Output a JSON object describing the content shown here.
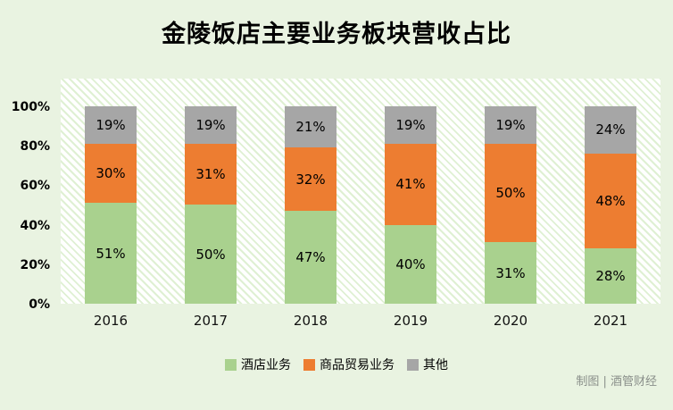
{
  "title": "金陵饭店主要业务板块营收占比",
  "credit": "制图 | 酒管财经",
  "colors": {
    "background": "#e9f3e1",
    "hotel": "#a9d18e",
    "trade": "#ed7d31",
    "other": "#a6a6a6"
  },
  "chart_data": {
    "type": "bar",
    "stacked": true,
    "title": "金陵饭店主要业务板块营收占比",
    "categories": [
      "2016",
      "2017",
      "2018",
      "2019",
      "2020",
      "2021"
    ],
    "series": [
      {
        "key": "hotel",
        "name": "酒店业务",
        "color": "#a9d18e",
        "values": [
          51,
          50,
          47,
          40,
          31,
          28
        ]
      },
      {
        "key": "trade",
        "name": "商品贸易业务",
        "color": "#ed7d31",
        "values": [
          30,
          31,
          32,
          41,
          50,
          48
        ]
      },
      {
        "key": "other",
        "name": "其他",
        "color": "#a6a6a6",
        "values": [
          19,
          19,
          21,
          19,
          19,
          24
        ]
      }
    ],
    "value_suffix": "%",
    "ylim": [
      0,
      100
    ],
    "yticks": [
      "0%",
      "20%",
      "40%",
      "60%",
      "80%",
      "100%"
    ],
    "xlabel": "",
    "ylabel": "",
    "grid": false,
    "legend_position": "bottom"
  }
}
